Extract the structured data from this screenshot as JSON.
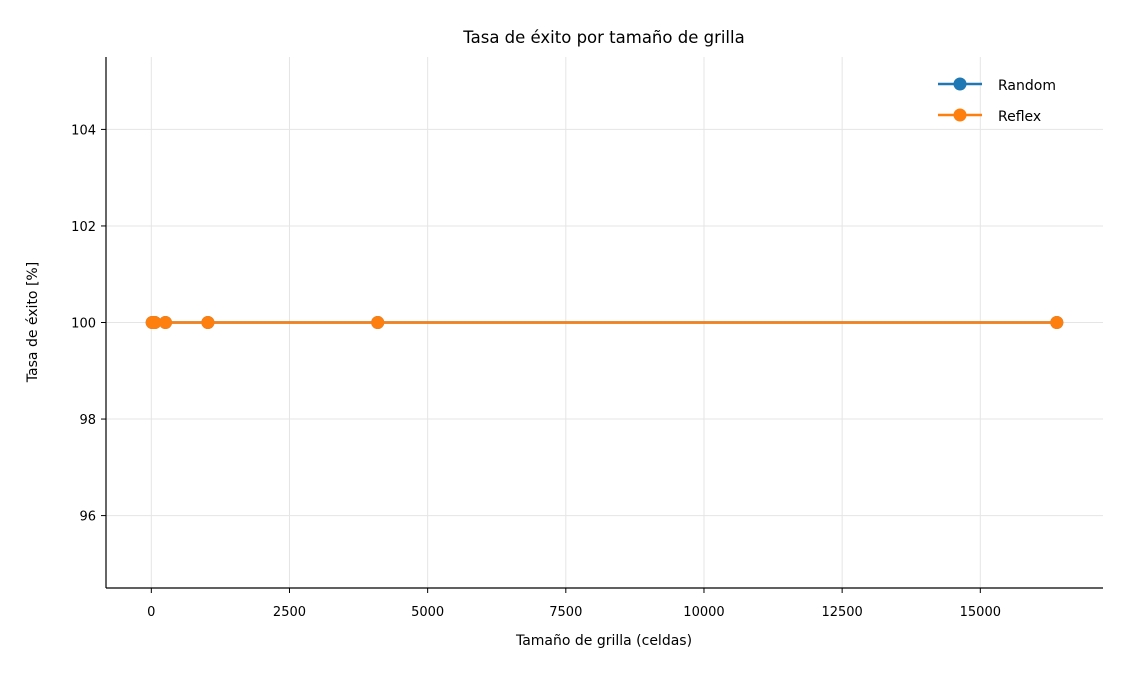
{
  "chart_data": {
    "type": "line",
    "title": "Tasa de éxito por tamaño de grilla",
    "xlabel": "Tamaño de grilla (celdas)",
    "ylabel": "Tasa de éxito [%]",
    "xlim": [
      -820,
      17220
    ],
    "ylim": [
      94.5,
      105.5
    ],
    "xticks": [
      0,
      2500,
      5000,
      7500,
      10000,
      12500,
      15000
    ],
    "yticks": [
      96,
      98,
      100,
      102,
      104
    ],
    "grid": true,
    "legend_position": "top-right",
    "series": [
      {
        "name": "Random",
        "color": "#1f77b4",
        "x": [
          16,
          64,
          256,
          1024,
          4096,
          16384
        ],
        "y": [
          100,
          100,
          100,
          100,
          100,
          100
        ]
      },
      {
        "name": "Reflex",
        "color": "#ff7f0e",
        "x": [
          16,
          64,
          256,
          1024,
          4096,
          16384
        ],
        "y": [
          100,
          100,
          100,
          100,
          100,
          100
        ]
      }
    ]
  }
}
